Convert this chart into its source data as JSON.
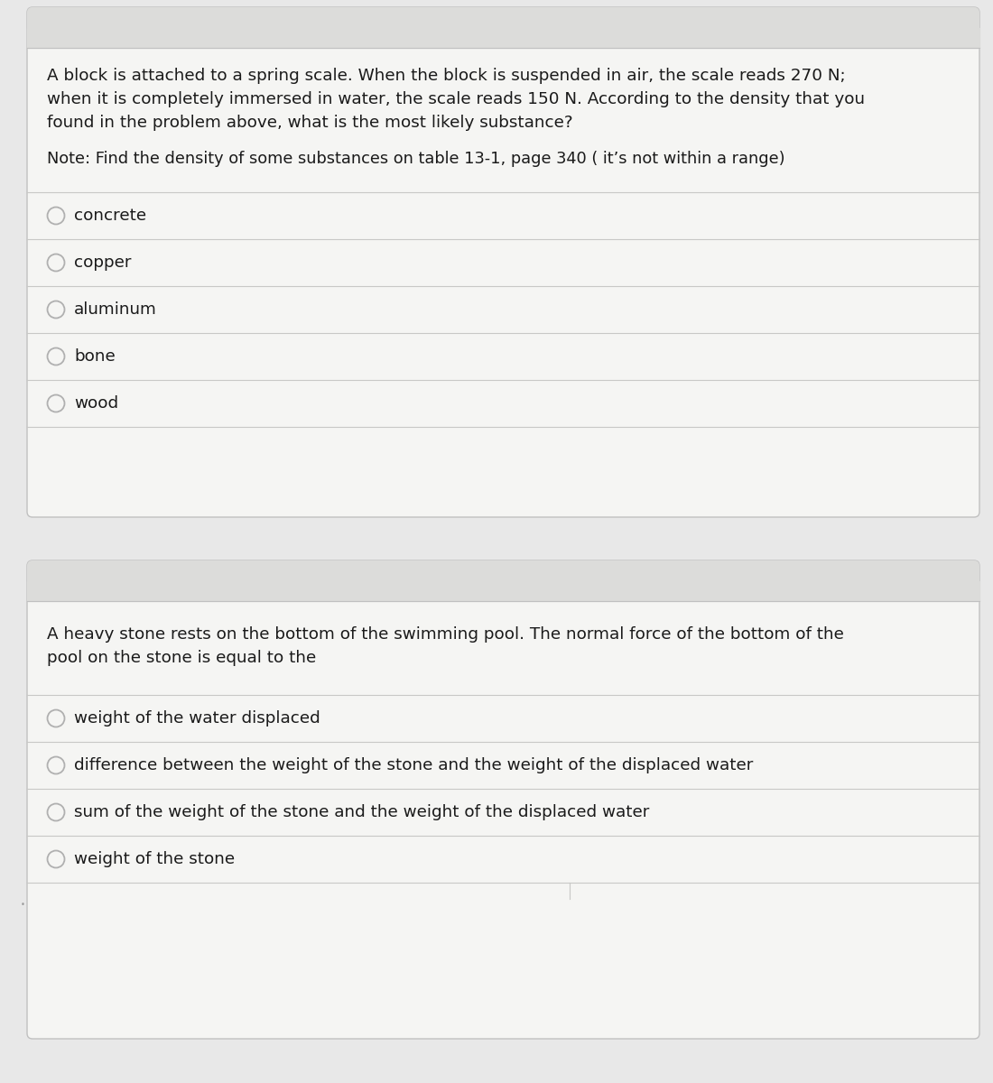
{
  "bg_color": "#e8e8e8",
  "card_color": "#f5f5f3",
  "card_border_color": "#c0c0c0",
  "header_color": "#dcdcda",
  "divider_color": "#c8c8c6",
  "text_color": "#1a1a1a",
  "radio_color": "#b0b0b0",
  "q1_question_line1": "A block is attached to a spring scale. When the block is suspended in air, the scale reads 270 N;",
  "q1_question_line2": "when it is completely immersed in water, the scale reads 150 N. According to the density that you",
  "q1_question_line3": "found in the problem above, what is the most likely substance?",
  "q1_note": "Note: Find the density of some substances on table 13-1, page 340 ( it’s not within a range)",
  "q1_options": [
    "concrete",
    "copper",
    "aluminum",
    "bone",
    "wood"
  ],
  "q2_question_line1": "A heavy stone rests on the bottom of the swimming pool. The normal force of the bottom of the",
  "q2_question_line2": "pool on the stone is equal to the",
  "q2_options": [
    "weight of the water displaced",
    "difference between the weight of the stone and the weight of the displaced water",
    "sum of the weight of the stone and the weight of the displaced water",
    "weight of the stone"
  ],
  "fig_width": 11.0,
  "fig_height": 12.0,
  "dpi": 100
}
